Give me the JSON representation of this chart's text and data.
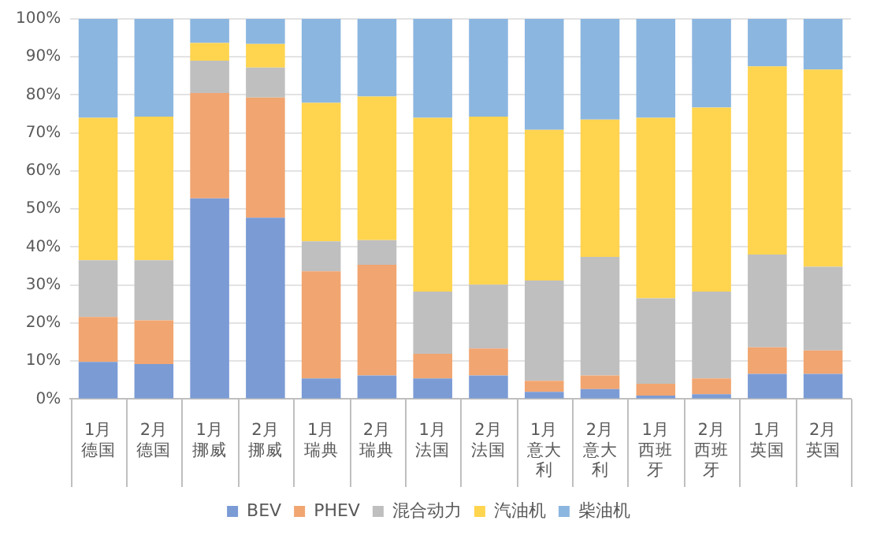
{
  "chart_data": {
    "type": "bar",
    "stacked": true,
    "categories": [
      "1月德国",
      "2月德国",
      "1月挪威",
      "2月挪威",
      "1月瑞典",
      "2月瑞典",
      "1月法国",
      "2月法国",
      "1月意大利",
      "2月意大利",
      "1月西班牙",
      "2月西班牙",
      "1月英国",
      "2月英国"
    ],
    "series": [
      {
        "name": "BEV",
        "color": "#7b9bd5",
        "values": [
          9.8,
          9.2,
          52.8,
          47.7,
          5.4,
          6.2,
          5.4,
          6.2,
          1.9,
          2.6,
          0.9,
          1.3,
          6.6,
          6.6
        ]
      },
      {
        "name": "PHEV",
        "color": "#f1a570",
        "values": [
          11.8,
          11.5,
          27.7,
          31.6,
          28.2,
          29.1,
          6.5,
          7.1,
          2.9,
          3.6,
          3.1,
          4.1,
          7.0,
          6.2
        ]
      },
      {
        "name": "混合动力",
        "color": "#bfbfbf",
        "values": [
          14.9,
          15.8,
          8.5,
          7.9,
          7.9,
          6.5,
          16.4,
          16.8,
          26.4,
          31.2,
          22.5,
          22.9,
          24.4,
          22.0
        ]
      },
      {
        "name": "汽油机",
        "color": "#ffd44f",
        "values": [
          37.5,
          37.8,
          4.7,
          6.2,
          36.4,
          37.8,
          45.7,
          44.2,
          39.6,
          36.1,
          47.5,
          48.4,
          49.5,
          51.9
        ]
      },
      {
        "name": "柴油机",
        "color": "#8bb6e0",
        "values": [
          26.0,
          25.7,
          6.3,
          6.6,
          22.1,
          20.4,
          26.0,
          25.7,
          29.2,
          26.5,
          26.0,
          23.3,
          12.5,
          13.3
        ]
      }
    ],
    "ylim": [
      0,
      100
    ],
    "yticks": [
      {
        "value": 0,
        "label": "0%"
      },
      {
        "value": 10,
        "label": "10%"
      },
      {
        "value": 20,
        "label": "20%"
      },
      {
        "value": 30,
        "label": "30%"
      },
      {
        "value": 40,
        "label": "40%"
      },
      {
        "value": 50,
        "label": "50%"
      },
      {
        "value": 60,
        "label": "60%"
      },
      {
        "value": 70,
        "label": "70%"
      },
      {
        "value": 80,
        "label": "80%"
      },
      {
        "value": 90,
        "label": "90%"
      },
      {
        "value": 100,
        "label": "100%"
      }
    ],
    "grid": "y",
    "legend": "bottom"
  }
}
